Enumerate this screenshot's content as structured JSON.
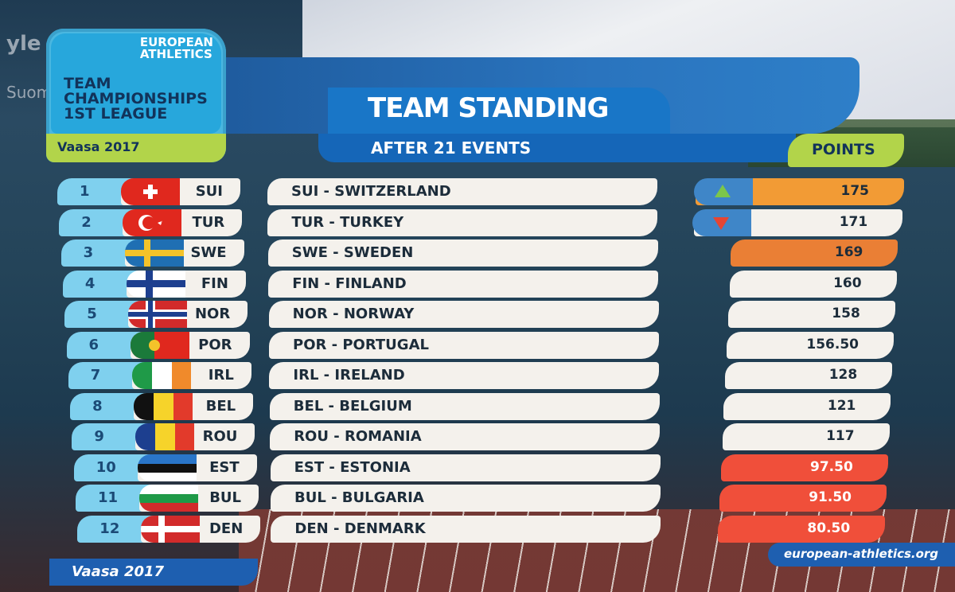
{
  "broadcaster": {
    "logo": "yle",
    "channel": "Suomi"
  },
  "event_logo": {
    "org": [
      "EUROPEAN",
      "ATHLETICS"
    ],
    "title": [
      "TEAM",
      "CHAMPIONSHIPS",
      "1ST LEAGUE"
    ],
    "venue": "Vaasa 2017"
  },
  "header": {
    "title": "TEAM STANDING",
    "subtitle": "AFTER 21 EVENTS",
    "points_label": "POINTS"
  },
  "colors": {
    "accent_blue": "#1976c7",
    "lime": "#b2d44a",
    "leader": "#f29b35",
    "relegation": "#f04f3a"
  },
  "standings": [
    {
      "rank": "1",
      "code": "SUI",
      "name": "SUI - SWITZERLAND",
      "points": "175",
      "style": "orange",
      "trend": "up",
      "flag": "sui"
    },
    {
      "rank": "2",
      "code": "TUR",
      "name": "TUR - TURKEY",
      "points": "171",
      "style": "white",
      "trend": "down",
      "flag": "tur"
    },
    {
      "rank": "3",
      "code": "SWE",
      "name": "SWE - SWEDEN",
      "points": "169",
      "style": "orange2",
      "trend": "",
      "flag": "swe"
    },
    {
      "rank": "4",
      "code": "FIN",
      "name": "FIN - FINLAND",
      "points": "160",
      "style": "white",
      "trend": "",
      "flag": "fin"
    },
    {
      "rank": "5",
      "code": "NOR",
      "name": "NOR - NORWAY",
      "points": "158",
      "style": "white",
      "trend": "",
      "flag": "nor"
    },
    {
      "rank": "6",
      "code": "POR",
      "name": "POR - PORTUGAL",
      "points": "156.50",
      "style": "white",
      "trend": "",
      "flag": "por"
    },
    {
      "rank": "7",
      "code": "IRL",
      "name": "IRL - IRELAND",
      "points": "128",
      "style": "white",
      "trend": "",
      "flag": "irl"
    },
    {
      "rank": "8",
      "code": "BEL",
      "name": "BEL - BELGIUM",
      "points": "121",
      "style": "white",
      "trend": "",
      "flag": "bel"
    },
    {
      "rank": "9",
      "code": "ROU",
      "name": "ROU - ROMANIA",
      "points": "117",
      "style": "white",
      "trend": "",
      "flag": "rou"
    },
    {
      "rank": "10",
      "code": "EST",
      "name": "EST - ESTONIA",
      "points": "97.50",
      "style": "red",
      "trend": "",
      "flag": "est"
    },
    {
      "rank": "11",
      "code": "BUL",
      "name": "BUL - BULGARIA",
      "points": "91.50",
      "style": "red",
      "trend": "",
      "flag": "bul"
    },
    {
      "rank": "12",
      "code": "DEN",
      "name": "DEN - DENMARK",
      "points": "80.50",
      "style": "red",
      "trend": "",
      "flag": "den"
    }
  ],
  "footer": {
    "left": "Vaasa 2017",
    "right": "european-athletics.org"
  }
}
